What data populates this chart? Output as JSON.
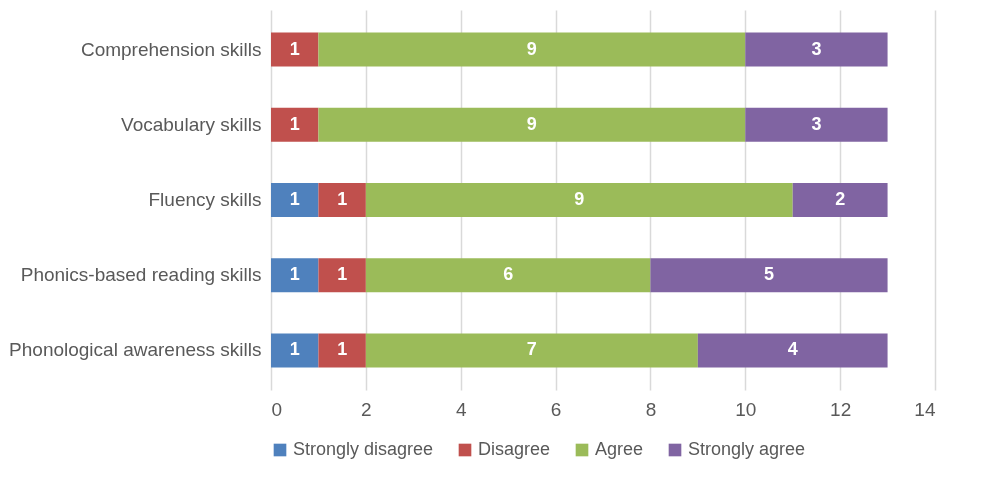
{
  "chart_data": {
    "type": "bar",
    "orientation": "horizontal",
    "stacked": true,
    "categories": [
      "Comprehension skills",
      "Vocabulary skills",
      "Fluency skills",
      "Phonics-based reading skills",
      "Phonological awareness skills"
    ],
    "series": [
      {
        "name": "Strongly disagree",
        "color": "#4f81bd",
        "values": [
          null,
          null,
          1,
          1,
          1
        ]
      },
      {
        "name": "Disagree",
        "color": "#c0504d",
        "values": [
          1,
          1,
          1,
          1,
          1
        ]
      },
      {
        "name": "Agree",
        "color": "#9bbb59",
        "values": [
          9,
          9,
          9,
          6,
          7
        ]
      },
      {
        "name": "Strongly agree",
        "color": "#8064a2",
        "values": [
          3,
          3,
          2,
          5,
          4
        ]
      }
    ],
    "xlim": [
      0,
      14
    ],
    "xticks": [
      0,
      2,
      4,
      6,
      8,
      10,
      12,
      14
    ],
    "grid": "x",
    "legend": "bottom",
    "data_labels": true
  }
}
